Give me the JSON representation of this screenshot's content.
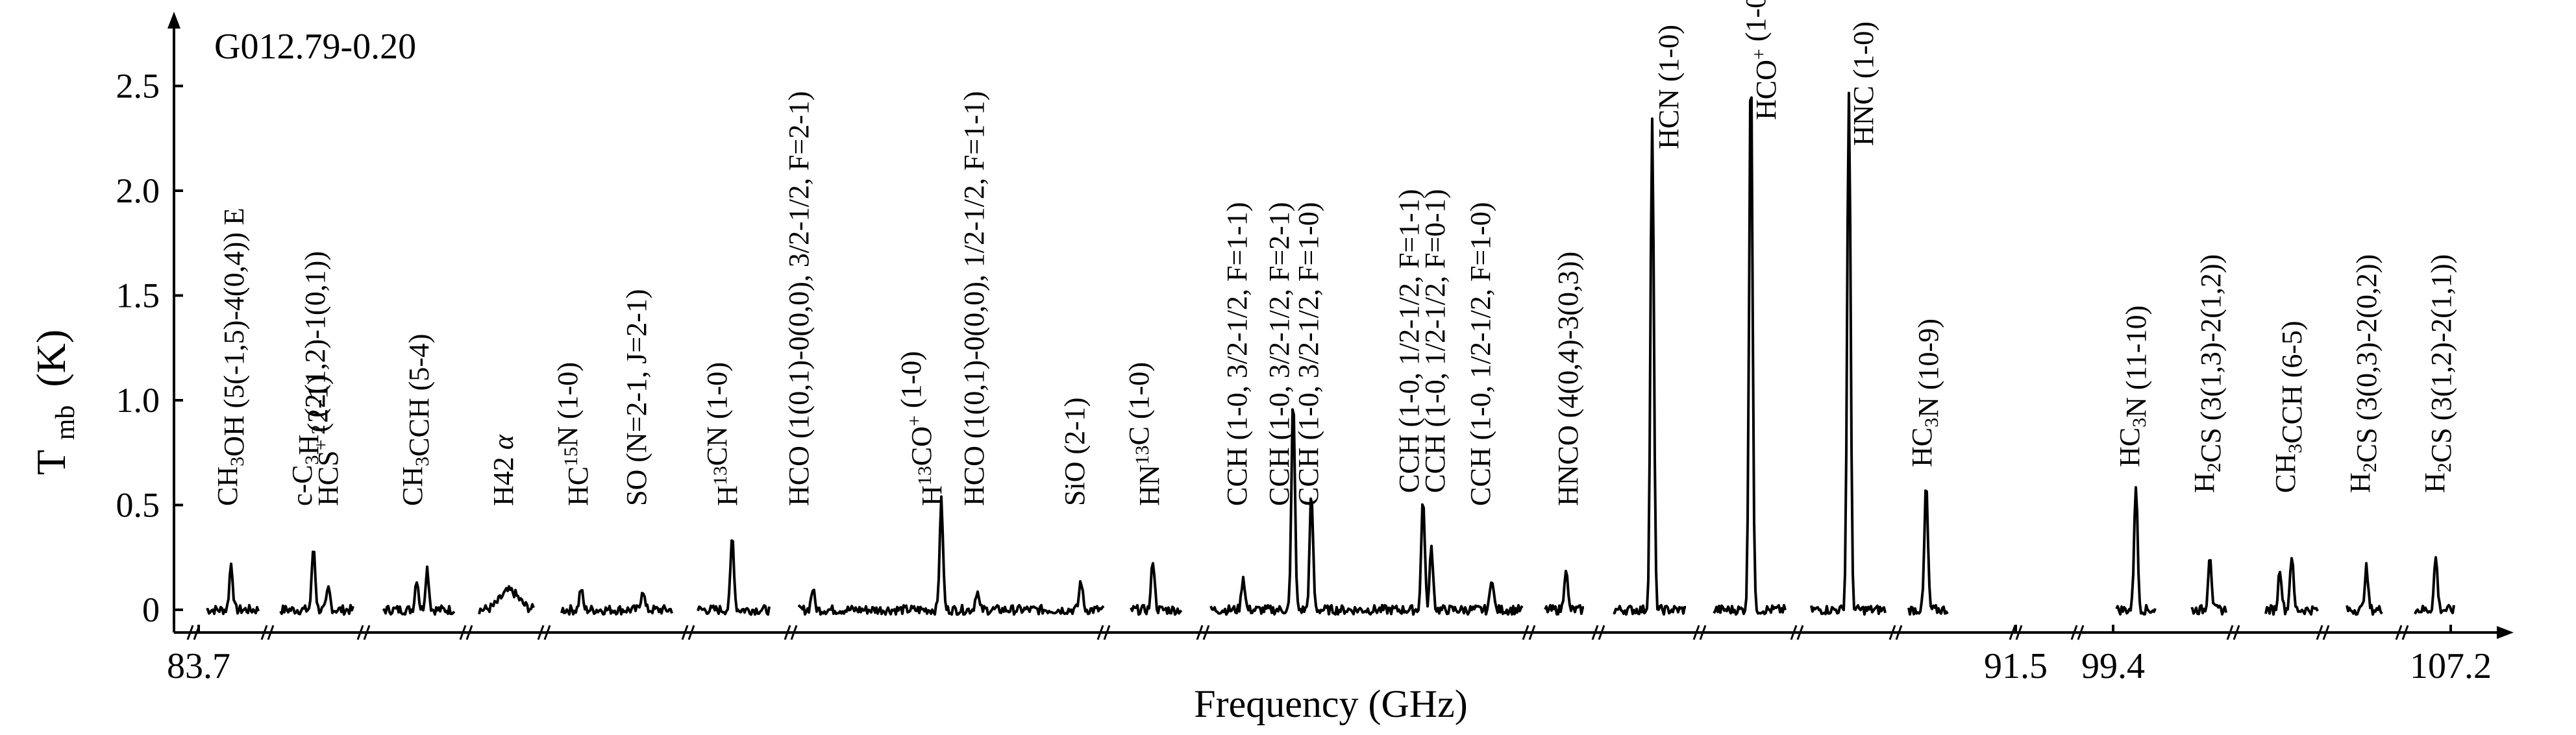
{
  "chart_data": {
    "type": "line",
    "source_label": "G012.79-0.20",
    "xlabel": "Frequency (GHz)",
    "ylabel_main": "T",
    "ylabel_sub": "mb",
    "ylabel_unit": "(K)",
    "ylim": [
      -0.05,
      2.95
    ],
    "yticks": [
      "0",
      "0.5",
      "1.0",
      "1.5",
      "2.0",
      "2.5"
    ],
    "ytick_values": [
      0,
      0.5,
      1.0,
      1.5,
      2.0,
      2.5
    ],
    "xtick_labels": [
      "83.7",
      "91.5",
      "99.4",
      "107.2"
    ],
    "axis_breaks": true,
    "segments": [
      {
        "lines": [
          {
            "label": "CH3OH (5(-1,5)-4(0,4)) E",
            "peak": 0.22
          }
        ]
      },
      {
        "lines": [
          {
            "label": "c-C3H2 (2(1,2)-1(0,1))",
            "peak": 0.3
          },
          {
            "label": "HCS+ (2-1)",
            "peak": 0.1
          }
        ]
      },
      {
        "lines": [
          {
            "label": "CH3CCH (5-4)",
            "peak": 0.2
          },
          {
            "label": "CH3CCH (5-4) K",
            "peak": 0.15
          }
        ]
      },
      {
        "lines": [
          {
            "label": "H42 α",
            "peak": 0.09,
            "broad": true
          }
        ]
      },
      {
        "lines": [
          {
            "label": "HC15N (1-0)",
            "peak": 0.1
          },
          {
            "label": "SO (N=2-1, J=2-1)",
            "peak": 0.1
          }
        ]
      },
      {
        "lines": [
          {
            "label": "H13CN (1-0)",
            "peak": 0.35
          }
        ]
      },
      {
        "lines": [
          {
            "label": "HCO (1(0,1)-0(0,0), 3/2-1/2, F=2-1)",
            "peak": 0.1
          },
          {
            "label": "H13CO+ (1-0)",
            "peak": 0.52
          },
          {
            "label": "HCO (1(0,1)-0(0,0), 1/2-1/2, F=1-1)",
            "peak": 0.09
          },
          {
            "label": "SiO (2-1)",
            "peak": 0.14
          }
        ]
      },
      {
        "lines": [
          {
            "label": "HN13C (1-0)",
            "peak": 0.24
          }
        ]
      },
      {
        "lines": [
          {
            "label": "CCH (1-0, 3/2-1/2, F=1-1)",
            "peak": 0.16
          },
          {
            "label": "CCH (1-0, 3/2-1/2, F=2-1)",
            "peak": 1.02
          },
          {
            "label": "CCH (1-0, 3/2-1/2, F=1-0)",
            "peak": 0.55
          },
          {
            "label": "CCH (1-0, 1/2-1/2, F=1-1)",
            "peak": 0.54
          },
          {
            "label": "CCH (1-0, 1/2-1/2, F=0-1)",
            "peak": 0.3
          },
          {
            "label": "CCH (1-0, 1/2-1/2, F=1-0)",
            "peak": 0.16
          }
        ]
      },
      {
        "lines": [
          {
            "label": "HNCO (4(0,4)-3(0,3))",
            "peak": 0.2
          }
        ]
      },
      {
        "lines": [
          {
            "label": "HCN (1-0)",
            "peak": 2.33
          }
        ]
      },
      {
        "lines": [
          {
            "label": "HCO+ (1-0)",
            "peak": 2.64
          }
        ]
      },
      {
        "lines": [
          {
            "label": "HNC (1-0)",
            "peak": 2.48
          }
        ]
      },
      {
        "lines": [
          {
            "label": "HC3N (10-9)",
            "peak": 0.6
          }
        ]
      },
      {
        "lines": [
          {
            "label": "HC3N (11-10)",
            "peak": 0.6
          }
        ]
      },
      {
        "lines": [
          {
            "label": "H2CS (3(1,3)-2(1,2))",
            "peak": 0.27
          }
        ]
      },
      {
        "lines": [
          {
            "label": "CH3CCH (6-5)",
            "peak": 0.26
          },
          {
            "label": "CH3CCH (6-5) K",
            "peak": 0.2
          }
        ]
      },
      {
        "lines": [
          {
            "label": "H2CS (3(0,3)-2(0,2))",
            "peak": 0.2
          }
        ]
      },
      {
        "lines": [
          {
            "label": "H2CS (3(1,2)-2(1,1))",
            "peak": 0.25
          }
        ]
      }
    ],
    "annotations": [
      {
        "main": "CH",
        "sub": "3",
        "rest": "OH (5(-1,5)-4(0,4)) E"
      },
      {
        "main": "c-C",
        "sub": "3",
        "mid": "H",
        "sub2": "2",
        "rest": " (2(1,2)-1(0,1))"
      },
      {
        "main": "HCS",
        "sup": "+",
        "rest": " (2-1)"
      },
      {
        "main": "CH",
        "sub": "3",
        "rest": "CCH (5-4)"
      },
      {
        "main": "H42 ",
        "italic": "α"
      },
      {
        "main": "HC",
        "sup": "15",
        "rest": "N (1-0)"
      },
      {
        "main": "SO (N=2-1, J=2-1)"
      },
      {
        "main": "H",
        "sup": "13",
        "rest": "CN (1-0)"
      },
      {
        "main": "HCO (1(0,1)-0(0,0), 3/2-1/2, F=2-1)"
      },
      {
        "main": "H",
        "sup": "13",
        "rest": "CO",
        "sup2": "+",
        "rest2": " (1-0)"
      },
      {
        "main": "HCO (1(0,1)-0(0,0), 1/2-1/2, F=1-1)"
      },
      {
        "main": "SiO (2-1)"
      },
      {
        "main": "HN",
        "sup": "13",
        "rest": "C (1-0)"
      },
      {
        "main": "CCH (1-0, 3/2-1/2, F=1-1)"
      },
      {
        "main": "CCH (1-0, 3/2-1/2, F=2-1)"
      },
      {
        "main": "CCH (1-0, 3/2-1/2, F=1-0)"
      },
      {
        "main": "CCH (1-0, 1/2-1/2, F=1-1)"
      },
      {
        "main": "CCH (1-0, 1/2-1/2, F=0-1)"
      },
      {
        "main": "CCH (1-0, 1/2-1/2, F=1-0)"
      },
      {
        "main": "HNCO (4(0,4)-3(0,3))"
      },
      {
        "main": "HCN (1-0)"
      },
      {
        "main": "HCO",
        "sup": "+",
        "rest": " (1-0)"
      },
      {
        "main": "HNC (1-0)"
      },
      {
        "main": "HC",
        "sub": "3",
        "rest": "N (10-9)"
      },
      {
        "main": "HC",
        "sub": "3",
        "rest": "N (11-10)"
      },
      {
        "main": "H",
        "sub": "2",
        "rest": "CS (3(1,3)-2(1,2))"
      },
      {
        "main": "CH",
        "sub": "3",
        "rest": "CCH (6-5)"
      },
      {
        "main": "H",
        "sub": "2",
        "rest": "CS (3(0,3)-2(0,2))"
      },
      {
        "main": "H",
        "sub": "2",
        "rest": "CS (3(1,2)-2(1,1))"
      }
    ]
  }
}
